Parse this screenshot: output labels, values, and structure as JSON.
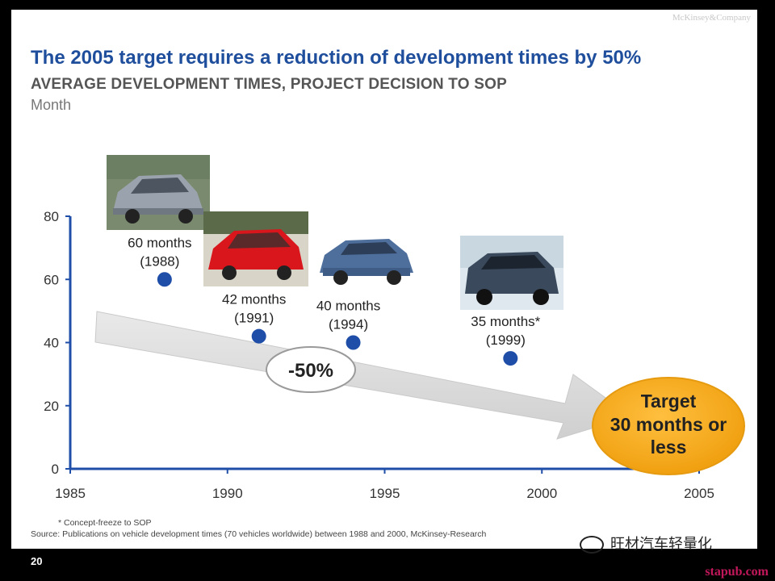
{
  "header": {
    "brand": "McKinsey&Company",
    "title": "The 2005 target requires a reduction of development times by 50%",
    "subtitle": "AVERAGE DEVELOPMENT TIMES, PROJECT DECISION TO SOP",
    "unit": "Month"
  },
  "chart_data": {
    "type": "scatter",
    "title": "The 2005 target requires a reduction of development times by 50%",
    "subtitle": "AVERAGE DEVELOPMENT TIMES, PROJECT DECISION TO SOP",
    "ylabel": "Month",
    "xlabel": "",
    "xlim": [
      1985,
      2005
    ],
    "ylim": [
      0,
      80
    ],
    "x_ticks": [
      "1985",
      "1990",
      "1995",
      "2000",
      "2005"
    ],
    "y_ticks": [
      "80",
      "60",
      "40",
      "20",
      "0"
    ],
    "points": [
      {
        "x": 1988,
        "y": 60,
        "label": "60 months",
        "year_label": "(1988)",
        "image": "car-silver-hatchback-icon"
      },
      {
        "x": 1991,
        "y": 42,
        "label": "42 months",
        "year_label": "(1991)",
        "image": "car-red-hatchback-icon"
      },
      {
        "x": 1994,
        "y": 40,
        "label": "40 months",
        "year_label": "(1994)",
        "image": "car-blue-sedan-icon"
      },
      {
        "x": 1999,
        "y": 35,
        "label": "35 months*",
        "year_label": "(1999)",
        "image": "car-suv-icon"
      }
    ],
    "trend_label": "-50%",
    "target_label": [
      "Target",
      "30 months or",
      "less"
    ],
    "colors": {
      "marker": "#1f4ea8",
      "axis": "#1f4ea8",
      "arrow": "#d9d9d9",
      "target": "#f5a623"
    },
    "grid": false,
    "legend": "none"
  },
  "footer": {
    "footnote": "* Concept-freeze to SOP",
    "source": "Source: Publications on vehicle development times (70 vehicles worldwide) between 1988 and 2000, McKinsey-Research",
    "page_number": "20",
    "watermark": "旺材汽车轻量化",
    "site": "stapub.com"
  }
}
